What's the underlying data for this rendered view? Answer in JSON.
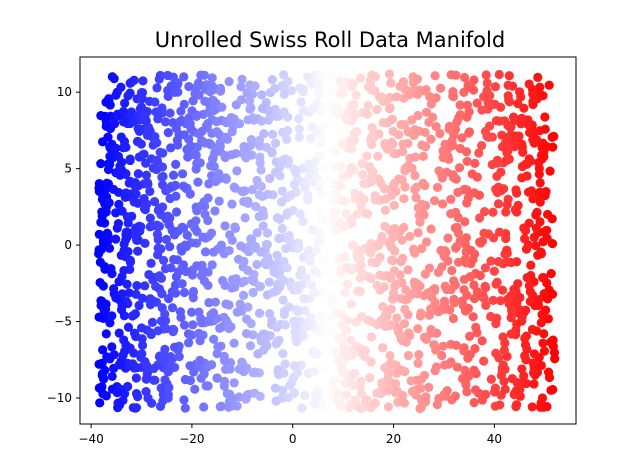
{
  "chart_data": {
    "type": "scatter",
    "title": "Unrolled Swiss Roll Data Manifold",
    "xlabel": "",
    "ylabel": "",
    "xlim": [
      -42.2,
      56.2
    ],
    "ylim": [
      -11.7,
      12.3
    ],
    "xticks": [
      -40,
      -20,
      0,
      20,
      40
    ],
    "yticks": [
      -10,
      -5,
      0,
      5,
      10
    ],
    "grid": false,
    "legend": "none",
    "colormap": "bwr",
    "color_low": "#0000ff",
    "color_mid": "#ffffff",
    "color_high": "#ff0000",
    "color_encodes": "x",
    "x_range_of_data": [
      -38.5,
      52.0
    ],
    "y_range_of_data": [
      -10.7,
      11.2
    ],
    "approx_point_count": 2000
  }
}
